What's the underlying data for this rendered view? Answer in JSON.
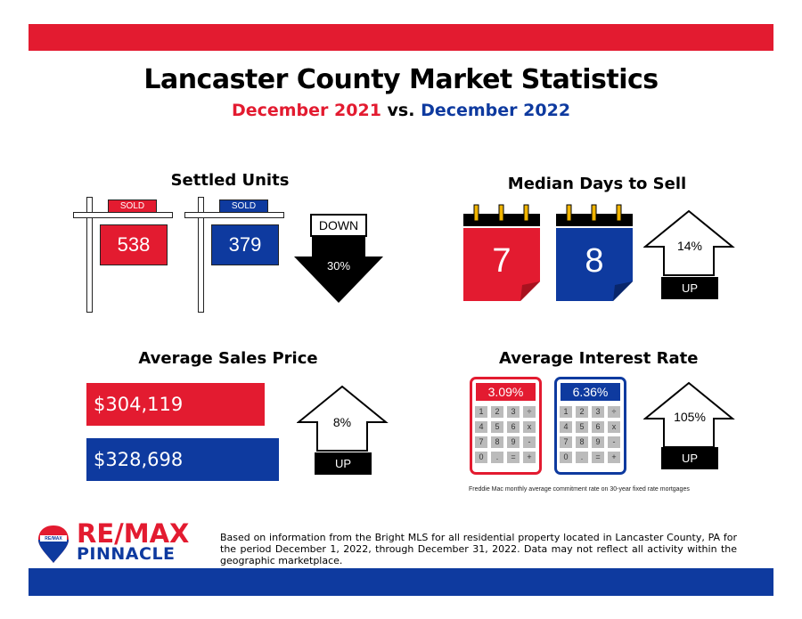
{
  "header": {
    "title": "Lancaster County Market Statistics",
    "subtitle_prefix": "December 2021",
    "subtitle_vs": " vs. ",
    "subtitle_suffix": "December 2022"
  },
  "colors": {
    "red": "#e31b30",
    "blue": "#0e3a9f"
  },
  "settled_units": {
    "title": "Settled Units",
    "sign_tag": "SOLD",
    "value_2021": "538",
    "value_2022": "379",
    "direction": "DOWN",
    "change": "30%"
  },
  "median_days": {
    "title": "Median Days to Sell",
    "value_2021": "7",
    "value_2022": "8",
    "change": "14%",
    "direction": "UP"
  },
  "avg_price": {
    "title": "Average Sales Price",
    "value_2021": "$304,119",
    "value_2022": "$328,698",
    "change": "8%",
    "direction": "UP"
  },
  "interest_rate": {
    "title": "Average Interest Rate",
    "value_2021": "3.09%",
    "value_2022": "6.36%",
    "keys": [
      "1",
      "2",
      "3",
      "÷",
      "4",
      "5",
      "6",
      "x",
      "7",
      "8",
      "9",
      "-",
      "0",
      ".",
      "=",
      "+"
    ],
    "change": "105%",
    "direction": "UP",
    "footnote": "Freddie Mac monthly average commitment rate on 30-year fixed rate mortgages"
  },
  "footer": {
    "logo_line1": "RE/MAX",
    "logo_line2": "PINNACLE",
    "balloon_text": "RE/MAX",
    "disclaimer": "Based on information from the Bright MLS for all residential property located in Lancaster County, PA for the period December 1, 2022, through December 31, 2022. Data may not reflect all activity within the geographic marketplace."
  }
}
